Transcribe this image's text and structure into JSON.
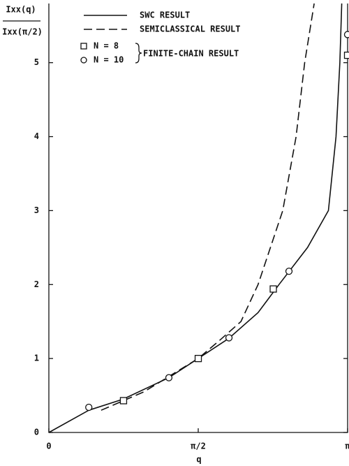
{
  "chart_data": {
    "type": "line",
    "ylabel_numerator": "Ixx(q)",
    "ylabel_denominator": "Ixx(π/2)",
    "xlabel": "q",
    "legend_group_label": "FINITE-CHAIN RESULT",
    "xlim": [
      0,
      3.1416
    ],
    "ylim": [
      0,
      5.8
    ],
    "xticks": [
      0,
      {
        "value": 1.5708,
        "label": "π/2"
      },
      {
        "value": 3.1416,
        "label": "π"
      }
    ],
    "yticks": [
      0,
      1,
      2,
      3,
      4,
      5
    ],
    "series": [
      {
        "name": "SWC RESULT",
        "style": "solid",
        "color": "#111111",
        "x": [
          0,
          0.42,
          0.78,
          1.26,
          1.571,
          1.89,
          2.2,
          2.42,
          2.72,
          2.94,
          3.02,
          3.06,
          3.08
        ],
        "values": [
          0,
          0.3,
          0.45,
          0.74,
          1.0,
          1.27,
          1.62,
          2.0,
          2.5,
          3.0,
          4.0,
          5.0,
          5.8
        ]
      },
      {
        "name": "SEMICLASSICAL RESULT",
        "style": "dashed",
        "color": "#111111",
        "x": [
          0.55,
          1.0,
          1.571,
          1.8,
          2.02,
          2.2,
          2.46,
          2.6,
          2.69,
          2.79
        ],
        "values": [
          0.3,
          0.55,
          1.0,
          1.25,
          1.5,
          2.0,
          3.0,
          4.0,
          5.0,
          5.8
        ]
      },
      {
        "name": "N = 8",
        "style": "square",
        "color": "#111111",
        "x": [
          0.785,
          1.571,
          2.36,
          3.1416
        ],
        "values": [
          0.43,
          1.0,
          1.94,
          5.1
        ]
      },
      {
        "name": "N = 10",
        "style": "circle",
        "color": "#111111",
        "x": [
          0.42,
          1.262,
          1.894,
          2.525,
          3.1416
        ],
        "values": [
          0.34,
          0.74,
          1.28,
          2.18,
          5.38
        ]
      }
    ]
  }
}
